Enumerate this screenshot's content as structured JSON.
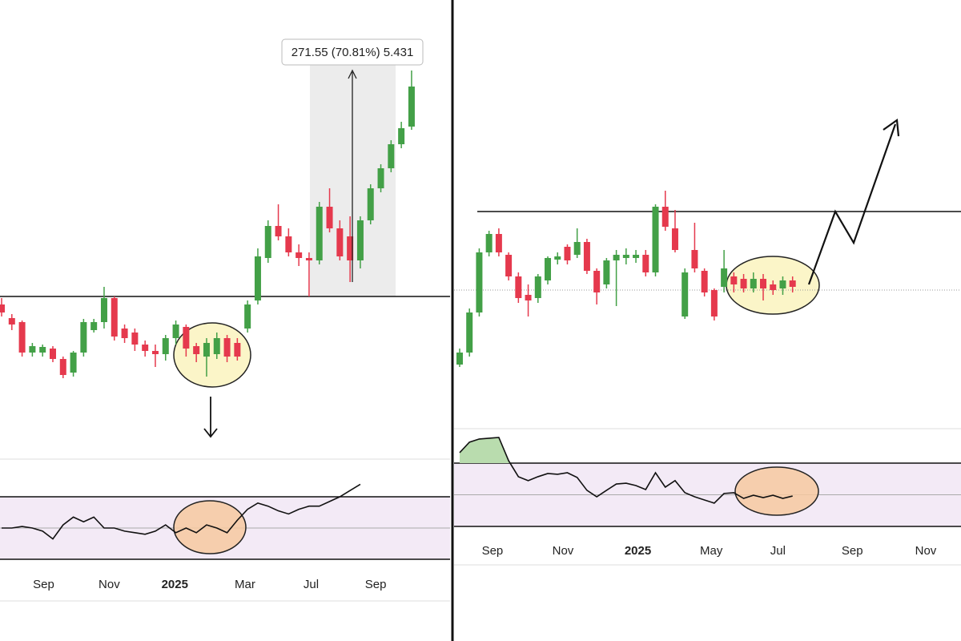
{
  "chart_data": [
    {
      "type": "candlestick",
      "open": [
        120,
        103,
        98,
        60,
        60,
        65,
        52,
        35,
        60,
        88,
        98,
        128,
        90,
        85,
        70,
        62,
        58,
        78,
        92,
        68,
        55,
        58,
        78,
        72,
        90,
        125,
        178,
        218,
        205,
        185,
        178,
        175,
        242,
        215,
        205,
        175,
        225,
        265,
        290,
        320,
        342
      ],
      "close": [
        110,
        95,
        60,
        68,
        67,
        52,
        32,
        60,
        98,
        98,
        128,
        80,
        78,
        70,
        62,
        58,
        78,
        95,
        65,
        58,
        72,
        78,
        55,
        55,
        120,
        180,
        218,
        205,
        185,
        178,
        175,
        242,
        215,
        180,
        175,
        225,
        265,
        290,
        320,
        340,
        392
      ],
      "high": [
        128,
        108,
        100,
        72,
        70,
        68,
        55,
        62,
        102,
        102,
        142,
        130,
        95,
        90,
        75,
        70,
        82,
        100,
        95,
        72,
        78,
        85,
        82,
        78,
        125,
        190,
        225,
        245,
        215,
        195,
        185,
        248,
        265,
        225,
        230,
        230,
        270,
        295,
        325,
        348,
        412
      ],
      "low": [
        105,
        88,
        55,
        55,
        55,
        48,
        28,
        30,
        55,
        85,
        90,
        75,
        72,
        62,
        55,
        42,
        50,
        70,
        55,
        48,
        30,
        52,
        48,
        50,
        85,
        120,
        172,
        200,
        180,
        168,
        130,
        170,
        210,
        175,
        148,
        165,
        220,
        260,
        285,
        315,
        338
      ],
      "up_color": "#43a047",
      "down_color": "#e5394d",
      "xlim": [
        -0.156,
        43.6
      ],
      "ylim": [
        -60,
        500
      ],
      "xticks": [
        {
          "value": 4.1,
          "label": "Sep"
        },
        {
          "value": 10.5,
          "label": "Nov"
        },
        {
          "value": 16.9,
          "label": "2025"
        },
        {
          "value": 23.75,
          "label": "Mar"
        },
        {
          "value": 30.2,
          "label": "Jul"
        },
        {
          "value": 36.5,
          "label": "Sep"
        }
      ],
      "levels": [
        130
      ],
      "annotation": "271.55 (70.81%) 5.431",
      "rsi": {
        "values": [
          50,
          50,
          51,
          50,
          48,
          43,
          52,
          57,
          54,
          57,
          50,
          50,
          48,
          47,
          46,
          48,
          52,
          47,
          50,
          47,
          52,
          50,
          47,
          55,
          62,
          66,
          64,
          61,
          59,
          62,
          64,
          64,
          67,
          70,
          74,
          78
        ],
        "ylim": [
          3.3,
          93.1
        ],
        "bands": [
          30,
          70
        ],
        "color": "#111",
        "band_color": "#f3eaf6"
      }
    },
    {
      "type": "candlestick",
      "open": [
        45,
        60,
        110,
        185,
        208,
        182,
        155,
        132,
        128,
        150,
        176,
        192,
        182,
        198,
        162,
        145,
        175,
        178,
        178,
        182,
        160,
        242,
        215,
        105,
        188,
        162,
        138,
        142,
        155,
        152,
        140,
        152,
        145,
        140,
        150
      ],
      "close": [
        60,
        110,
        185,
        208,
        185,
        155,
        128,
        125,
        155,
        178,
        180,
        175,
        198,
        162,
        135,
        175,
        182,
        182,
        182,
        160,
        242,
        217,
        188,
        160,
        165,
        135,
        105,
        165,
        145,
        140,
        152,
        140,
        138,
        150,
        142
      ],
      "high": [
        65,
        115,
        190,
        212,
        215,
        185,
        160,
        145,
        158,
        180,
        185,
        195,
        215,
        202,
        165,
        178,
        188,
        190,
        188,
        188,
        245,
        262,
        238,
        165,
        222,
        165,
        140,
        188,
        160,
        158,
        160,
        158,
        150,
        155,
        155
      ],
      "low": [
        42,
        55,
        105,
        180,
        180,
        150,
        122,
        105,
        122,
        145,
        170,
        170,
        178,
        158,
        120,
        140,
        118,
        170,
        172,
        155,
        155,
        212,
        185,
        102,
        160,
        130,
        100,
        135,
        135,
        135,
        135,
        125,
        132,
        132,
        135
      ],
      "up_color": "#43a047",
      "down_color": "#e5394d",
      "xlim": [
        -0.57,
        51.2
      ],
      "ylim": [
        -35,
        500
      ],
      "xticks": [
        {
          "value": 3.35,
          "label": "Sep"
        },
        {
          "value": 10.55,
          "label": "Nov"
        },
        {
          "value": 18.2,
          "label": "2025"
        },
        {
          "value": 25.7,
          "label": "May"
        },
        {
          "value": 32.5,
          "label": "Jul"
        },
        {
          "value": 40.1,
          "label": "Sep"
        },
        {
          "value": 47.6,
          "label": "Nov"
        }
      ],
      "levels": [
        236
      ],
      "dotted_levels": [
        138
      ],
      "rsi": {
        "values": [
          76.6,
          83.2,
          85.2,
          85.7,
          86.2,
          71.5,
          61.4,
          58.9,
          61.4,
          63.4,
          62.9,
          63.9,
          60.9,
          52.8,
          48.7,
          52.8,
          56.8,
          57.3,
          55.8,
          53.3,
          63.9,
          54.8,
          58.9,
          51.3,
          48.7,
          46.7,
          44.7,
          50.8,
          51.3,
          47.7,
          49.7,
          48.2,
          49.7,
          47.7,
          49.2
        ],
        "ylim": [
          5.7,
          89.2
        ],
        "bands": [
          30,
          70
        ],
        "color": "#111",
        "band_color": "#f3eaf6",
        "overbought_fill": "#b9dcae"
      }
    }
  ]
}
